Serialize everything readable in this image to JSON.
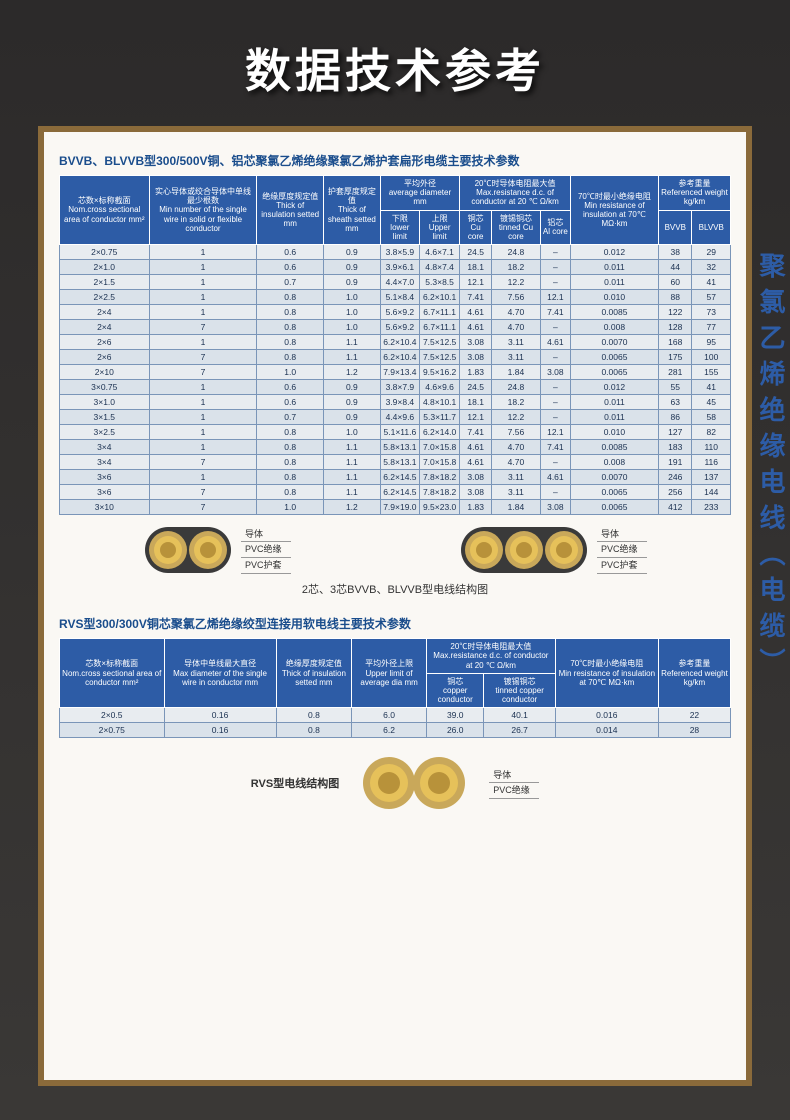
{
  "main_title": "数据技术参考",
  "side_text": "聚氯乙烯绝缘电线（电缆）",
  "table1": {
    "title": "BVVB、BLVVB型300/500V铜、铝芯聚氯乙烯绝缘聚氯乙烯护套扁形电缆主要技术参数",
    "headers": {
      "col1_cn": "芯数×标称截面",
      "col1_en": "Nom.cross sectional area of conductor mm²",
      "col2_cn": "实心导体或绞合导体中单线最少根数",
      "col2_en": "Min number of the single wire in solid or flexible conductor",
      "col3_cn": "绝缘厚度规定值",
      "col3_en": "Thick of insulation setted mm",
      "col4_cn": "护套厚度规定值",
      "col4_en": "Thick of sheath setted mm",
      "col5_cn": "平均外径",
      "col5_en": "average diameter mm",
      "col5a_cn": "下限",
      "col5a_en": "lower limit",
      "col5b_cn": "上限",
      "col5b_en": "Upper limit",
      "col6_cn": "20℃时导体电阻最大值",
      "col6_en": "Max.resistance d.c. of conductor at 20 ℃ Ω/km",
      "col6a_cn": "铜芯",
      "col6a_en": "Cu core",
      "col6b_cn": "镀锡铜芯",
      "col6b_en": "tinned Cu core",
      "col6c_cn": "铝芯",
      "col6c_en": "Al core",
      "col7_cn": "70℃时最小绝缘电阻",
      "col7_en": "Min resistance of insulation at 70℃ MΩ·km",
      "col8_cn": "参考重量",
      "col8_en": "Referenced weight kg/km",
      "col8a": "BVVB",
      "col8b": "BLVVB"
    },
    "rows": [
      [
        "2×0.75",
        "1",
        "0.6",
        "0.9",
        "3.8×5.9",
        "4.6×7.1",
        "24.5",
        "24.8",
        "–",
        "0.012",
        "38",
        "29"
      ],
      [
        "2×1.0",
        "1",
        "0.6",
        "0.9",
        "3.9×6.1",
        "4.8×7.4",
        "18.1",
        "18.2",
        "–",
        "0.011",
        "44",
        "32"
      ],
      [
        "2×1.5",
        "1",
        "0.7",
        "0.9",
        "4.4×7.0",
        "5.3×8.5",
        "12.1",
        "12.2",
        "–",
        "0.011",
        "60",
        "41"
      ],
      [
        "2×2.5",
        "1",
        "0.8",
        "1.0",
        "5.1×8.4",
        "6.2×10.1",
        "7.41",
        "7.56",
        "12.1",
        "0.010",
        "88",
        "57"
      ],
      [
        "2×4",
        "1",
        "0.8",
        "1.0",
        "5.6×9.2",
        "6.7×11.1",
        "4.61",
        "4.70",
        "7.41",
        "0.0085",
        "122",
        "73"
      ],
      [
        "2×4",
        "7",
        "0.8",
        "1.0",
        "5.6×9.2",
        "6.7×11.1",
        "4.61",
        "4.70",
        "–",
        "0.008",
        "128",
        "77"
      ],
      [
        "2×6",
        "1",
        "0.8",
        "1.1",
        "6.2×10.4",
        "7.5×12.5",
        "3.08",
        "3.11",
        "4.61",
        "0.0070",
        "168",
        "95"
      ],
      [
        "2×6",
        "7",
        "0.8",
        "1.1",
        "6.2×10.4",
        "7.5×12.5",
        "3.08",
        "3.11",
        "–",
        "0.0065",
        "175",
        "100"
      ],
      [
        "2×10",
        "7",
        "1.0",
        "1.2",
        "7.9×13.4",
        "9.5×16.2",
        "1.83",
        "1.84",
        "3.08",
        "0.0065",
        "281",
        "155"
      ],
      [
        "3×0.75",
        "1",
        "0.6",
        "0.9",
        "3.8×7.9",
        "4.6×9.6",
        "24.5",
        "24.8",
        "–",
        "0.012",
        "55",
        "41"
      ],
      [
        "3×1.0",
        "1",
        "0.6",
        "0.9",
        "3.9×8.4",
        "4.8×10.1",
        "18.1",
        "18.2",
        "–",
        "0.011",
        "63",
        "45"
      ],
      [
        "3×1.5",
        "1",
        "0.7",
        "0.9",
        "4.4×9.6",
        "5.3×11.7",
        "12.1",
        "12.2",
        "–",
        "0.011",
        "86",
        "58"
      ],
      [
        "3×2.5",
        "1",
        "0.8",
        "1.0",
        "5.1×11.6",
        "6.2×14.0",
        "7.41",
        "7.56",
        "12.1",
        "0.010",
        "127",
        "82"
      ],
      [
        "3×4",
        "1",
        "0.8",
        "1.1",
        "5.8×13.1",
        "7.0×15.8",
        "4.61",
        "4.70",
        "7.41",
        "0.0085",
        "183",
        "110"
      ],
      [
        "3×4",
        "7",
        "0.8",
        "1.1",
        "5.8×13.1",
        "7.0×15.8",
        "4.61",
        "4.70",
        "–",
        "0.008",
        "191",
        "116"
      ],
      [
        "3×6",
        "1",
        "0.8",
        "1.1",
        "6.2×14.5",
        "7.8×18.2",
        "3.08",
        "3.11",
        "4.61",
        "0.0070",
        "246",
        "137"
      ],
      [
        "3×6",
        "7",
        "0.8",
        "1.1",
        "6.2×14.5",
        "7.8×18.2",
        "3.08",
        "3.11",
        "–",
        "0.0065",
        "256",
        "144"
      ],
      [
        "3×10",
        "7",
        "1.0",
        "1.2",
        "7.9×19.0",
        "9.5×23.0",
        "1.83",
        "1.84",
        "3.08",
        "0.0065",
        "412",
        "233"
      ]
    ]
  },
  "diagram1": {
    "labels": [
      "导体",
      "PVC绝缘",
      "PVC护套"
    ],
    "caption": "2芯、3芯BVVB、BLVVB型电线结构图",
    "colors": {
      "jacket": "#3a3a3a",
      "insulation": "#c9a85a",
      "conductor": "#e6c15a",
      "conductor_inner": "#b8923a"
    }
  },
  "table2": {
    "title": "RVS型300/300V铜芯聚氯乙烯绝缘绞型连接用软电线主要技术参数",
    "headers": {
      "col1_cn": "芯数×标称截面",
      "col1_en": "Nom.cross sectional area of conductor mm²",
      "col2_cn": "导体中单线最大直径",
      "col2_en": "Max diameter of the single wire in conductor mm",
      "col3_cn": "绝缘厚度规定值",
      "col3_en": "Thick of insulation setted mm",
      "col4_cn": "平均外径上限",
      "col4_en": "Upper limit of average dia mm",
      "col5_cn": "20℃时导体电阻最大值",
      "col5_en": "Max.resistance d.c. of conductor at 20 ℃ Ω/km",
      "col5a_cn": "铜芯",
      "col5a_en": "copper conductor",
      "col5b_cn": "镀锡铜芯",
      "col5b_en": "tinned copper conductor",
      "col6_cn": "70℃时最小绝缘电阻",
      "col6_en": "Min resistance of insulation at 70℃ MΩ·km",
      "col7_cn": "参考重量",
      "col7_en": "Referenced weight kg/km"
    },
    "rows": [
      [
        "2×0.5",
        "0.16",
        "0.8",
        "6.0",
        "39.0",
        "40.1",
        "0.016",
        "22"
      ],
      [
        "2×0.75",
        "0.16",
        "0.8",
        "6.2",
        "26.0",
        "26.7",
        "0.014",
        "28"
      ]
    ]
  },
  "diagram2": {
    "caption": "RVS型电线结构图",
    "labels": [
      "导体",
      "PVC绝缘"
    ]
  }
}
